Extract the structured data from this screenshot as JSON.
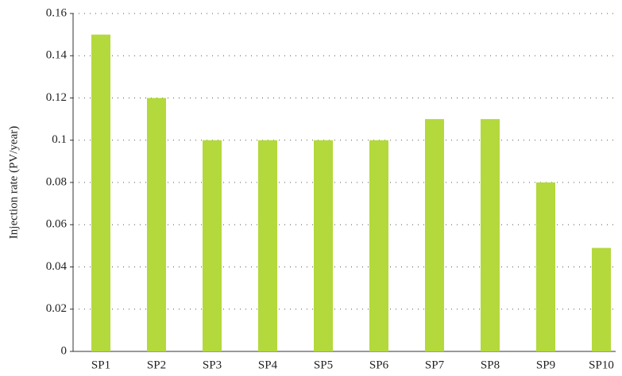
{
  "chart_data": {
    "type": "bar",
    "y_label": "Injection rate (PV/year)",
    "categories": [
      "SP1",
      "SP2",
      "SP3",
      "SP4",
      "SP5",
      "SP6",
      "SP7",
      "SP8",
      "SP9",
      "SP10"
    ],
    "values": [
      0.15,
      0.12,
      0.1,
      0.1,
      0.1,
      0.1,
      0.11,
      0.11,
      0.08,
      0.049
    ],
    "color": "#b3d93c",
    "ylim": [
      0,
      0.16
    ],
    "yticks": [
      0,
      0.02,
      0.04,
      0.06,
      0.08,
      0.1,
      0.12,
      0.14,
      0.16
    ],
    "grid": true
  }
}
